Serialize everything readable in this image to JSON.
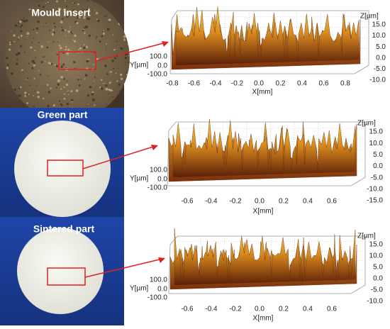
{
  "panels": [
    {
      "label": "Mould insert",
      "x_label": "X[mm]",
      "y_label": "Y[µm]",
      "z_label": "Z[µm]",
      "x_ticks": [
        "-0.8",
        "-0.6",
        "-0.4",
        "-0.2",
        "0.0",
        "0.2",
        "0.4",
        "0.6",
        "0.8"
      ],
      "y_ticks": [
        "100.0",
        "0.0",
        "-100.0"
      ],
      "z_ticks": [
        "15.0",
        "10.0",
        "5.0",
        "0.0",
        "-5.0",
        "-10.0"
      ]
    },
    {
      "label": "Green part",
      "x_label": "X[mm]",
      "y_label": "Y[µm]",
      "z_label": "Z[µm]",
      "x_ticks": [
        "-0.6",
        "-0.4",
        "-0.2",
        "0.0",
        "0.2",
        "0.4",
        "0.6"
      ],
      "y_ticks": [
        "100.0",
        "0.0",
        "-100.0"
      ],
      "z_ticks": [
        "15.0",
        "10.0",
        "5.0",
        "0.0",
        "-5.0",
        "-10.0",
        "-15.0"
      ]
    },
    {
      "label": "Sintered part",
      "x_label": "X[mm]",
      "y_label": "Y[µm]",
      "z_label": "Z[µm]",
      "x_ticks": [
        "-0.6",
        "-0.4",
        "-0.2",
        "0.0",
        "0.2",
        "0.4",
        "0.6"
      ],
      "y_ticks": [
        "100.0",
        "0.0",
        "-100.0"
      ],
      "z_ticks": [
        "15.0",
        "10.0",
        "5.0",
        "0.0",
        "-5.0",
        "-10.0"
      ]
    }
  ]
}
